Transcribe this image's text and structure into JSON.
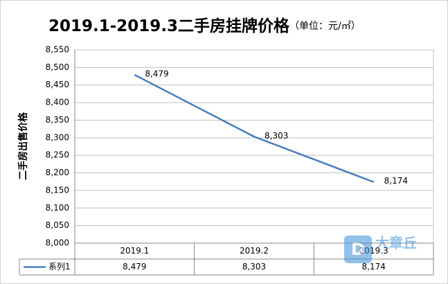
{
  "chart_data": {
    "type": "line",
    "title": "2019.1-2019.3二手房挂牌价格",
    "title_unit": "（单位：元/㎡）",
    "y_label": "二手房出售价格",
    "categories": [
      "2019.1",
      "2019.2",
      "2019.3"
    ],
    "series": [
      {
        "name": "系列1",
        "color": "#4a7ebb",
        "values": [
          8479,
          8303,
          8174
        ],
        "value_labels": [
          "8,479",
          "8,303",
          "8,174"
        ]
      }
    ],
    "ylim": [
      8000,
      8550
    ],
    "yticks": [
      {
        "value": 8000,
        "label": "8,000"
      },
      {
        "value": 8050,
        "label": "8,050"
      },
      {
        "value": 8100,
        "label": "8,100"
      },
      {
        "value": 8150,
        "label": "8,150"
      },
      {
        "value": 8200,
        "label": "8,200"
      },
      {
        "value": 8250,
        "label": "8,250"
      },
      {
        "value": 8300,
        "label": "8,300"
      },
      {
        "value": 8350,
        "label": "8,350"
      },
      {
        "value": 8400,
        "label": "8,400"
      },
      {
        "value": 8450,
        "label": "8,450"
      },
      {
        "value": 8500,
        "label": "8,500"
      },
      {
        "value": 8550,
        "label": "8,550"
      }
    ],
    "grid": true,
    "data_table": true,
    "watermark_logo": "D",
    "watermark": "大章丘"
  }
}
